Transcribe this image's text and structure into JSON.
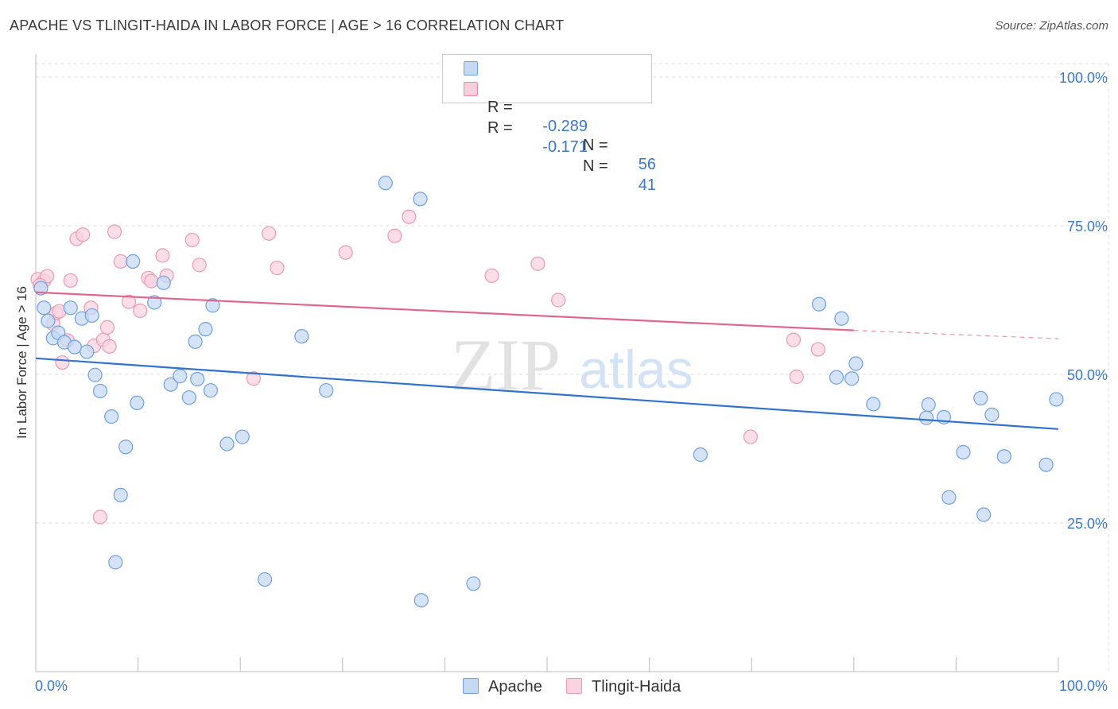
{
  "header": {
    "title": "APACHE VS TLINGIT-HAIDA IN LABOR FORCE | AGE > 16 CORRELATION CHART",
    "source": "Source: ZipAtlas.com"
  },
  "watermark": {
    "zip": "ZIP",
    "atlas": "atlas"
  },
  "legend": {
    "rows": [
      {
        "r_label": "R =",
        "r_value": "-0.289",
        "n_label": "N =",
        "n_value": "56",
        "color": "#6fa0e0",
        "fill": "#c5d9f5"
      },
      {
        "r_label": "R =",
        "r_value": "-0.171",
        "n_label": "N =",
        "n_value": "41",
        "color": "#e08aa8",
        "fill": "#f9cfdd"
      }
    ]
  },
  "colors": {
    "apache_stroke": "#6fa0e0",
    "apache_fill": "#c5d9f5",
    "apache_line": "#2f72cf",
    "tlingit_stroke": "#e99ab5",
    "tlingit_fill": "#f9d3e0",
    "tlingit_line": "#e0668f",
    "axis_text": "#3a78c9",
    "grid": "#dddddd"
  },
  "chart_data": {
    "type": "scatter",
    "title": "APACHE VS TLINGIT-HAIDA IN LABOR FORCE | AGE > 16 CORRELATION CHART",
    "xlabel": "",
    "ylabel": "In Labor Force | Age > 16",
    "xlim": [
      0,
      100
    ],
    "ylim": [
      0,
      100
    ],
    "x_tick_labels": [
      "0.0%",
      "100.0%"
    ],
    "y_tick_labels": [
      {
        "value": 100,
        "label": "100.0%"
      },
      {
        "value": 75,
        "label": "75.0%"
      },
      {
        "value": 50,
        "label": "50.0%"
      },
      {
        "value": 25,
        "label": "25.0%"
      }
    ],
    "grid": true,
    "legend_position": "bottom",
    "series": [
      {
        "name": "Apache",
        "trend": {
          "x0": 0,
          "y0": 52.7,
          "x1": 100,
          "y1": 40.8
        },
        "points": [
          [
            0.5,
            64.5
          ],
          [
            0.8,
            61.2
          ],
          [
            1.2,
            59.0
          ],
          [
            1.7,
            56.1
          ],
          [
            2.2,
            57.0
          ],
          [
            2.8,
            55.4
          ],
          [
            3.4,
            61.2
          ],
          [
            3.8,
            54.6
          ],
          [
            4.5,
            59.4
          ],
          [
            5.0,
            53.8
          ],
          [
            5.5,
            59.9
          ],
          [
            5.8,
            49.9
          ],
          [
            6.3,
            47.2
          ],
          [
            7.4,
            42.9
          ],
          [
            7.8,
            18.4
          ],
          [
            8.3,
            29.7
          ],
          [
            8.8,
            37.8
          ],
          [
            9.9,
            45.2
          ],
          [
            11.6,
            62.1
          ],
          [
            12.5,
            65.4
          ],
          [
            13.2,
            48.3
          ],
          [
            14.1,
            49.7
          ],
          [
            15.0,
            46.1
          ],
          [
            15.8,
            49.2
          ],
          [
            15.6,
            55.5
          ],
          [
            16.6,
            57.6
          ],
          [
            17.1,
            47.3
          ],
          [
            17.3,
            61.6
          ],
          [
            18.7,
            38.3
          ],
          [
            20.2,
            39.5
          ],
          [
            22.4,
            15.5
          ],
          [
            26.0,
            56.4
          ],
          [
            28.4,
            47.3
          ],
          [
            34.2,
            82.2
          ],
          [
            37.6,
            79.5
          ],
          [
            37.7,
            12.0
          ],
          [
            42.8,
            14.8
          ],
          [
            65.0,
            36.5
          ],
          [
            76.6,
            61.8
          ],
          [
            78.3,
            49.5
          ],
          [
            78.8,
            59.4
          ],
          [
            79.8,
            49.3
          ],
          [
            80.2,
            51.8
          ],
          [
            81.9,
            45.0
          ],
          [
            87.1,
            42.7
          ],
          [
            87.3,
            44.9
          ],
          [
            88.8,
            42.8
          ],
          [
            89.3,
            29.3
          ],
          [
            90.7,
            36.9
          ],
          [
            92.4,
            46.0
          ],
          [
            92.7,
            26.4
          ],
          [
            93.5,
            43.2
          ],
          [
            94.7,
            36.2
          ],
          [
            98.8,
            34.8
          ],
          [
            99.8,
            45.8
          ],
          [
            9.5,
            69.0
          ]
        ]
      },
      {
        "name": "Tlingit-Haida",
        "trend": {
          "x0": 0,
          "y0": 63.8,
          "x1": 80,
          "y1": 57.4,
          "dash_to_x": 100,
          "dash_to_y": 56.0
        },
        "points": [
          [
            0.2,
            66.0
          ],
          [
            0.8,
            65.7
          ],
          [
            1.1,
            66.5
          ],
          [
            1.7,
            58.5
          ],
          [
            2.0,
            60.3
          ],
          [
            2.3,
            60.6
          ],
          [
            2.6,
            52.0
          ],
          [
            3.1,
            55.7
          ],
          [
            3.4,
            65.8
          ],
          [
            4.0,
            72.8
          ],
          [
            4.6,
            73.5
          ],
          [
            5.4,
            61.2
          ],
          [
            5.7,
            54.8
          ],
          [
            6.3,
            26.0
          ],
          [
            6.6,
            55.8
          ],
          [
            7.0,
            57.9
          ],
          [
            7.2,
            54.7
          ],
          [
            7.7,
            74.0
          ],
          [
            8.3,
            69.0
          ],
          [
            9.1,
            62.2
          ],
          [
            10.2,
            60.7
          ],
          [
            11.0,
            66.2
          ],
          [
            11.3,
            65.7
          ],
          [
            12.4,
            70.0
          ],
          [
            12.8,
            66.6
          ],
          [
            15.3,
            72.6
          ],
          [
            16.0,
            68.4
          ],
          [
            21.3,
            49.3
          ],
          [
            22.8,
            73.7
          ],
          [
            23.6,
            67.9
          ],
          [
            30.3,
            70.5
          ],
          [
            35.1,
            73.3
          ],
          [
            36.5,
            76.5
          ],
          [
            44.6,
            66.6
          ],
          [
            49.1,
            68.6
          ],
          [
            51.1,
            62.5
          ],
          [
            69.9,
            39.5
          ],
          [
            74.1,
            55.8
          ],
          [
            74.4,
            49.6
          ],
          [
            76.5,
            54.2
          ],
          [
            0.4,
            65.0
          ]
        ]
      }
    ]
  },
  "bottom_legend": [
    {
      "label": "Apache"
    },
    {
      "label": "Tlingit-Haida"
    }
  ]
}
